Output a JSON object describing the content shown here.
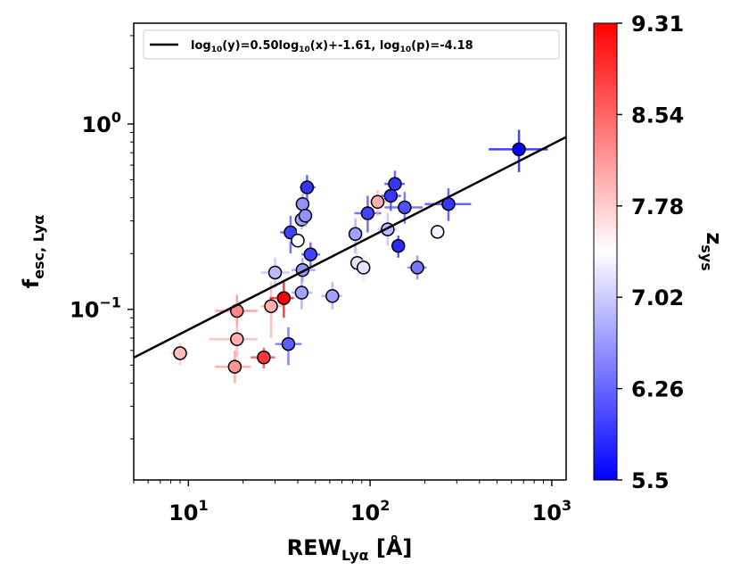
{
  "chart_data": {
    "type": "scatter",
    "xscale": "log",
    "yscale": "log",
    "xlim": [
      5,
      1200
    ],
    "ylim": [
      0.012,
      3.5
    ],
    "xlabel_main": "REW",
    "xlabel_sub": "Lyα",
    "xlabel_unit": "[Å]",
    "ylabel_main": "f",
    "ylabel_sub": "esc, Lyα",
    "x_ticks": [
      {
        "value": 10,
        "base": "10",
        "exp": "1"
      },
      {
        "value": 100,
        "base": "10",
        "exp": "2"
      },
      {
        "value": 1000,
        "base": "10",
        "exp": "3"
      }
    ],
    "y_ticks": [
      {
        "value": 0.1,
        "base": "10",
        "exp": "−1"
      },
      {
        "value": 1,
        "base": "10",
        "exp": "0"
      }
    ],
    "fit_line": {
      "slope": 0.5,
      "intercept": -1.61
    },
    "legend": {
      "placement": "top",
      "prefix": "log",
      "sub": "10",
      "part1": "(y)=0.50log",
      "part2": "(x)+-1.61, log",
      "part3": "(p)=-4.18"
    },
    "colorbar": {
      "label": "z",
      "label_sub": "sys",
      "min": 5.5,
      "max": 9.31,
      "colors": [
        "#0000ff",
        "#ffffff",
        "#ff0000"
      ],
      "tick_labels": [
        "5.5",
        "6.26",
        "7.02",
        "7.78",
        "8.54",
        "9.31"
      ]
    },
    "points": [
      {
        "x": 9.0,
        "y": 0.058,
        "xlo": 8,
        "xhi": 10,
        "ylo": 0.05,
        "yhi": 0.066,
        "z": 7.9
      },
      {
        "x": 18.5,
        "y": 0.098,
        "xlo": 14,
        "xhi": 24,
        "ylo": 0.08,
        "yhi": 0.12,
        "z": 8.3
      },
      {
        "x": 18.5,
        "y": 0.069,
        "xlo": 13,
        "xhi": 24,
        "ylo": 0.055,
        "yhi": 0.085,
        "z": 8.0
      },
      {
        "x": 18.0,
        "y": 0.049,
        "xlo": 14,
        "xhi": 22,
        "ylo": 0.04,
        "yhi": 0.06,
        "z": 8.2
      },
      {
        "x": 26.0,
        "y": 0.055,
        "xlo": 22,
        "xhi": 30,
        "ylo": 0.048,
        "yhi": 0.062,
        "z": 8.9
      },
      {
        "x": 28.5,
        "y": 0.104,
        "xlo": 25,
        "xhi": 33,
        "ylo": 0.07,
        "yhi": 0.14,
        "z": 8.0
      },
      {
        "x": 33.5,
        "y": 0.115,
        "xlo": 28,
        "xhi": 38,
        "ylo": 0.09,
        "yhi": 0.14,
        "z": 9.31
      },
      {
        "x": 30.0,
        "y": 0.158,
        "xlo": 25,
        "xhi": 36,
        "ylo": 0.13,
        "yhi": 0.19,
        "z": 6.9
      },
      {
        "x": 35.5,
        "y": 0.065,
        "xlo": 30,
        "xhi": 42,
        "ylo": 0.05,
        "yhi": 0.08,
        "z": 6.2
      },
      {
        "x": 36.5,
        "y": 0.26,
        "xlo": 32,
        "xhi": 40,
        "ylo": 0.2,
        "yhi": 0.32,
        "z": 6.0
      },
      {
        "x": 40.0,
        "y": 0.235,
        "xlo": 36,
        "xhi": 44,
        "ylo": 0.2,
        "yhi": 0.27,
        "z": 7.4
      },
      {
        "x": 42.0,
        "y": 0.123,
        "xlo": 37,
        "xhi": 48,
        "ylo": 0.1,
        "yhi": 0.15,
        "z": 6.7
      },
      {
        "x": 42.5,
        "y": 0.163,
        "xlo": 37,
        "xhi": 50,
        "ylo": 0.14,
        "yhi": 0.19,
        "z": 6.6
      },
      {
        "x": 42.0,
        "y": 0.305,
        "xlo": 39,
        "xhi": 46,
        "ylo": 0.27,
        "yhi": 0.34,
        "z": 6.7
      },
      {
        "x": 42.5,
        "y": 0.37,
        "xlo": 39,
        "xhi": 46,
        "ylo": 0.32,
        "yhi": 0.42,
        "z": 6.6
      },
      {
        "x": 44.0,
        "y": 0.32,
        "xlo": 40,
        "xhi": 48,
        "ylo": 0.28,
        "yhi": 0.37,
        "z": 6.6
      },
      {
        "x": 45.0,
        "y": 0.455,
        "xlo": 41,
        "xhi": 50,
        "ylo": 0.39,
        "yhi": 0.53,
        "z": 5.9
      },
      {
        "x": 47.0,
        "y": 0.198,
        "xlo": 42,
        "xhi": 53,
        "ylo": 0.17,
        "yhi": 0.23,
        "z": 6.0
      },
      {
        "x": 62.0,
        "y": 0.118,
        "xlo": 54,
        "xhi": 70,
        "ylo": 0.1,
        "yhi": 0.14,
        "z": 6.7
      },
      {
        "x": 83.0,
        "y": 0.255,
        "xlo": 76,
        "xhi": 90,
        "ylo": 0.2,
        "yhi": 0.31,
        "z": 6.7
      },
      {
        "x": 85.0,
        "y": 0.178,
        "xlo": 78,
        "xhi": 92,
        "ylo": 0.15,
        "yhi": 0.21,
        "z": 7.2
      },
      {
        "x": 92.0,
        "y": 0.168,
        "xlo": 84,
        "xhi": 100,
        "ylo": 0.14,
        "yhi": 0.2,
        "z": 7.2
      },
      {
        "x": 97.0,
        "y": 0.33,
        "xlo": 82,
        "xhi": 115,
        "ylo": 0.26,
        "yhi": 0.41,
        "z": 6.0
      },
      {
        "x": 110.0,
        "y": 0.38,
        "xlo": 100,
        "xhi": 122,
        "ylo": 0.32,
        "yhi": 0.44,
        "z": 8.0
      },
      {
        "x": 125.0,
        "y": 0.27,
        "xlo": 110,
        "xhi": 140,
        "ylo": 0.22,
        "yhi": 0.33,
        "z": 6.9
      },
      {
        "x": 130.0,
        "y": 0.41,
        "xlo": 115,
        "xhi": 148,
        "ylo": 0.34,
        "yhi": 0.49,
        "z": 5.9
      },
      {
        "x": 137.0,
        "y": 0.475,
        "xlo": 120,
        "xhi": 155,
        "ylo": 0.4,
        "yhi": 0.56,
        "z": 5.9
      },
      {
        "x": 143.0,
        "y": 0.22,
        "xlo": 133,
        "xhi": 153,
        "ylo": 0.19,
        "yhi": 0.25,
        "z": 5.8
      },
      {
        "x": 155.0,
        "y": 0.355,
        "xlo": 120,
        "xhi": 195,
        "ylo": 0.29,
        "yhi": 0.43,
        "z": 6.1
      },
      {
        "x": 182.0,
        "y": 0.168,
        "xlo": 160,
        "xhi": 205,
        "ylo": 0.145,
        "yhi": 0.195,
        "z": 6.4
      },
      {
        "x": 235.0,
        "y": 0.262,
        "xlo": 215,
        "xhi": 258,
        "ylo": 0.24,
        "yhi": 0.285,
        "z": 7.3
      },
      {
        "x": 270.0,
        "y": 0.37,
        "xlo": 200,
        "xhi": 360,
        "ylo": 0.3,
        "yhi": 0.45,
        "z": 5.9
      },
      {
        "x": 660.0,
        "y": 0.73,
        "xlo": 450,
        "xhi": 950,
        "ylo": 0.55,
        "yhi": 0.93,
        "z": 5.5
      }
    ]
  }
}
